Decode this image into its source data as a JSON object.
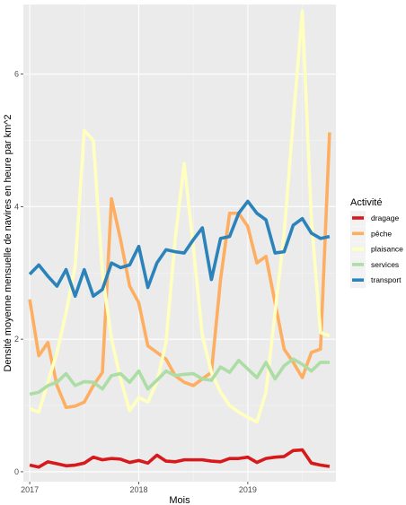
{
  "chart_data": {
    "type": "line",
    "title": "",
    "xlabel": "Mois",
    "ylabel": "Densité moyenne mensuelle de navires en heure par km^2",
    "x_ticks": [
      {
        "label": "2017",
        "month_index": 0
      },
      {
        "label": "2018",
        "month_index": 12
      },
      {
        "label": "2019",
        "month_index": 24
      }
    ],
    "y_ticks": [
      0,
      2,
      4,
      6
    ],
    "xlim_months": [
      -0.7,
      33.7
    ],
    "ylim": [
      -0.15,
      7.05
    ],
    "grid": true,
    "legend": {
      "title": "Activité",
      "position": "right"
    },
    "x": [
      "2017-01",
      "2017-02",
      "2017-03",
      "2017-04",
      "2017-05",
      "2017-06",
      "2017-07",
      "2017-08",
      "2017-09",
      "2017-10",
      "2017-11",
      "2017-12",
      "2018-01",
      "2018-02",
      "2018-03",
      "2018-04",
      "2018-05",
      "2018-06",
      "2018-07",
      "2018-08",
      "2018-09",
      "2018-10",
      "2018-11",
      "2018-12",
      "2019-01",
      "2019-02",
      "2019-03",
      "2019-04",
      "2019-05",
      "2019-06",
      "2019-07",
      "2019-08",
      "2019-09",
      "2019-10"
    ],
    "series": [
      {
        "name": "dragage",
        "color": "#D7191C",
        "values": [
          0.1,
          0.07,
          0.15,
          0.12,
          0.09,
          0.1,
          0.13,
          0.22,
          0.18,
          0.2,
          0.19,
          0.14,
          0.17,
          0.13,
          0.25,
          0.16,
          0.15,
          0.18,
          0.18,
          0.18,
          0.16,
          0.15,
          0.2,
          0.2,
          0.22,
          0.14,
          0.2,
          0.22,
          0.23,
          0.32,
          0.33,
          0.13,
          0.1,
          0.08
        ]
      },
      {
        "name": "pêche",
        "color": "#FDAE61",
        "values": [
          2.6,
          1.75,
          1.95,
          1.3,
          0.97,
          0.99,
          1.05,
          1.3,
          1.5,
          4.12,
          3.5,
          2.8,
          2.55,
          1.9,
          1.8,
          1.7,
          1.45,
          1.35,
          1.3,
          1.4,
          1.5,
          2.9,
          3.9,
          3.9,
          3.7,
          3.15,
          3.25,
          2.55,
          1.85,
          1.65,
          1.42,
          1.8,
          1.85,
          5.12
        ]
      },
      {
        "name": "plaisance",
        "color": "#FFFFBF",
        "values": [
          0.95,
          0.9,
          1.35,
          1.8,
          2.4,
          3.1,
          5.15,
          5.0,
          3.0,
          2.0,
          1.4,
          0.92,
          1.12,
          1.05,
          1.35,
          1.95,
          3.5,
          4.65,
          3.4,
          2.05,
          1.5,
          1.2,
          1.0,
          0.9,
          0.82,
          0.75,
          1.2,
          2.4,
          3.6,
          5.3,
          6.95,
          3.8,
          2.1,
          2.05
        ]
      },
      {
        "name": "services",
        "color": "#ABDDA4",
        "values": [
          1.17,
          1.2,
          1.3,
          1.35,
          1.48,
          1.3,
          1.36,
          1.35,
          1.25,
          1.45,
          1.48,
          1.35,
          1.52,
          1.25,
          1.38,
          1.52,
          1.45,
          1.47,
          1.48,
          1.4,
          1.38,
          1.58,
          1.5,
          1.68,
          1.55,
          1.42,
          1.65,
          1.4,
          1.6,
          1.7,
          1.62,
          1.52,
          1.65,
          1.65
        ]
      },
      {
        "name": "transport",
        "color": "#2B83BA",
        "values": [
          2.98,
          3.12,
          2.95,
          2.8,
          3.05,
          2.65,
          3.05,
          2.65,
          2.75,
          3.15,
          3.08,
          3.12,
          3.4,
          2.78,
          3.15,
          3.35,
          3.32,
          3.3,
          3.5,
          3.68,
          2.9,
          3.52,
          3.55,
          3.9,
          4.08,
          3.9,
          3.8,
          3.3,
          3.32,
          3.72,
          3.82,
          3.6,
          3.52,
          3.55
        ]
      }
    ]
  }
}
